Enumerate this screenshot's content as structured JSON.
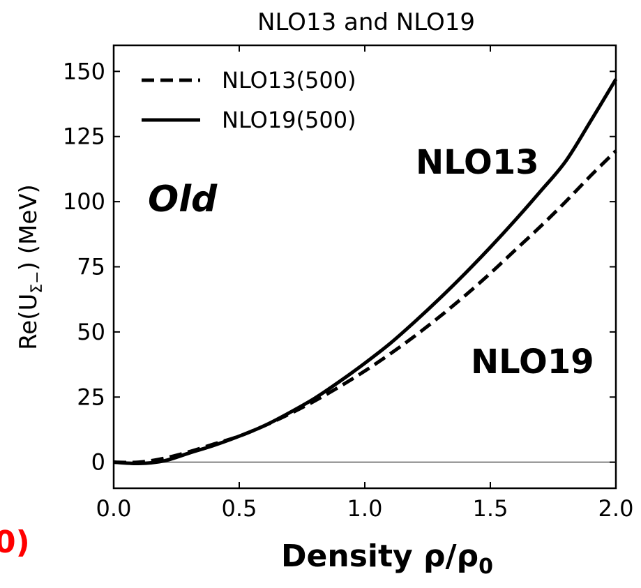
{
  "chart_data": {
    "type": "line",
    "title": "NLO13 and NLO19",
    "ylabel": "Re(U",
    "ylabel_sub": "Σ−",
    "ylabel_tail": ") (MeV)",
    "xlabel": "Density ρ/ρ",
    "xlabel_sub": "0",
    "xlim": [
      0.0,
      2.0
    ],
    "ylim": [
      -10,
      160
    ],
    "xticks": [
      0.0,
      0.5,
      1.0,
      1.5,
      2.0
    ],
    "xtick_labels": [
      "0.0",
      "0.5",
      "1.0",
      "1.5",
      "2.0"
    ],
    "yticks": [
      0,
      25,
      50,
      75,
      100,
      125,
      150
    ],
    "ytick_labels": [
      "0",
      "25",
      "50",
      "75",
      "100",
      "125",
      "150"
    ],
    "reference_line_y": 0,
    "legend_position": "top-left",
    "series": [
      {
        "name": "NLO13(500)",
        "style": "dashed",
        "x": [
          0.0,
          0.1,
          0.2,
          0.3,
          0.4,
          0.5,
          0.6,
          0.7,
          0.8,
          0.9,
          1.0,
          1.1,
          1.2,
          1.3,
          1.4,
          1.5,
          1.6,
          1.7,
          1.8,
          1.9,
          2.0
        ],
        "y": [
          0,
          0,
          1.5,
          4,
          7,
          10,
          14,
          18.5,
          23.5,
          29,
          35,
          41.5,
          48.5,
          56,
          64,
          72.5,
          81.5,
          90.5,
          100,
          110,
          119.5
        ]
      },
      {
        "name": "NLO19(500)",
        "style": "solid",
        "x": [
          0.0,
          0.1,
          0.2,
          0.3,
          0.4,
          0.5,
          0.6,
          0.7,
          0.8,
          0.9,
          1.0,
          1.1,
          1.2,
          1.3,
          1.4,
          1.5,
          1.6,
          1.7,
          1.8,
          1.9,
          2.0
        ],
        "y": [
          0,
          -0.5,
          0.5,
          3.5,
          6.5,
          10,
          14,
          19,
          24.5,
          31,
          38,
          45.5,
          54,
          63,
          72.5,
          82.5,
          93,
          104,
          115.5,
          131,
          147
        ]
      }
    ],
    "annotations": {
      "nlo13": "NLO13",
      "nlo19": "NLO19",
      "old": "Old",
      "cut_red": "0)"
    }
  },
  "colors": {
    "line": "#000000",
    "reference": "#808080",
    "red_annotation": "#ff0000"
  }
}
